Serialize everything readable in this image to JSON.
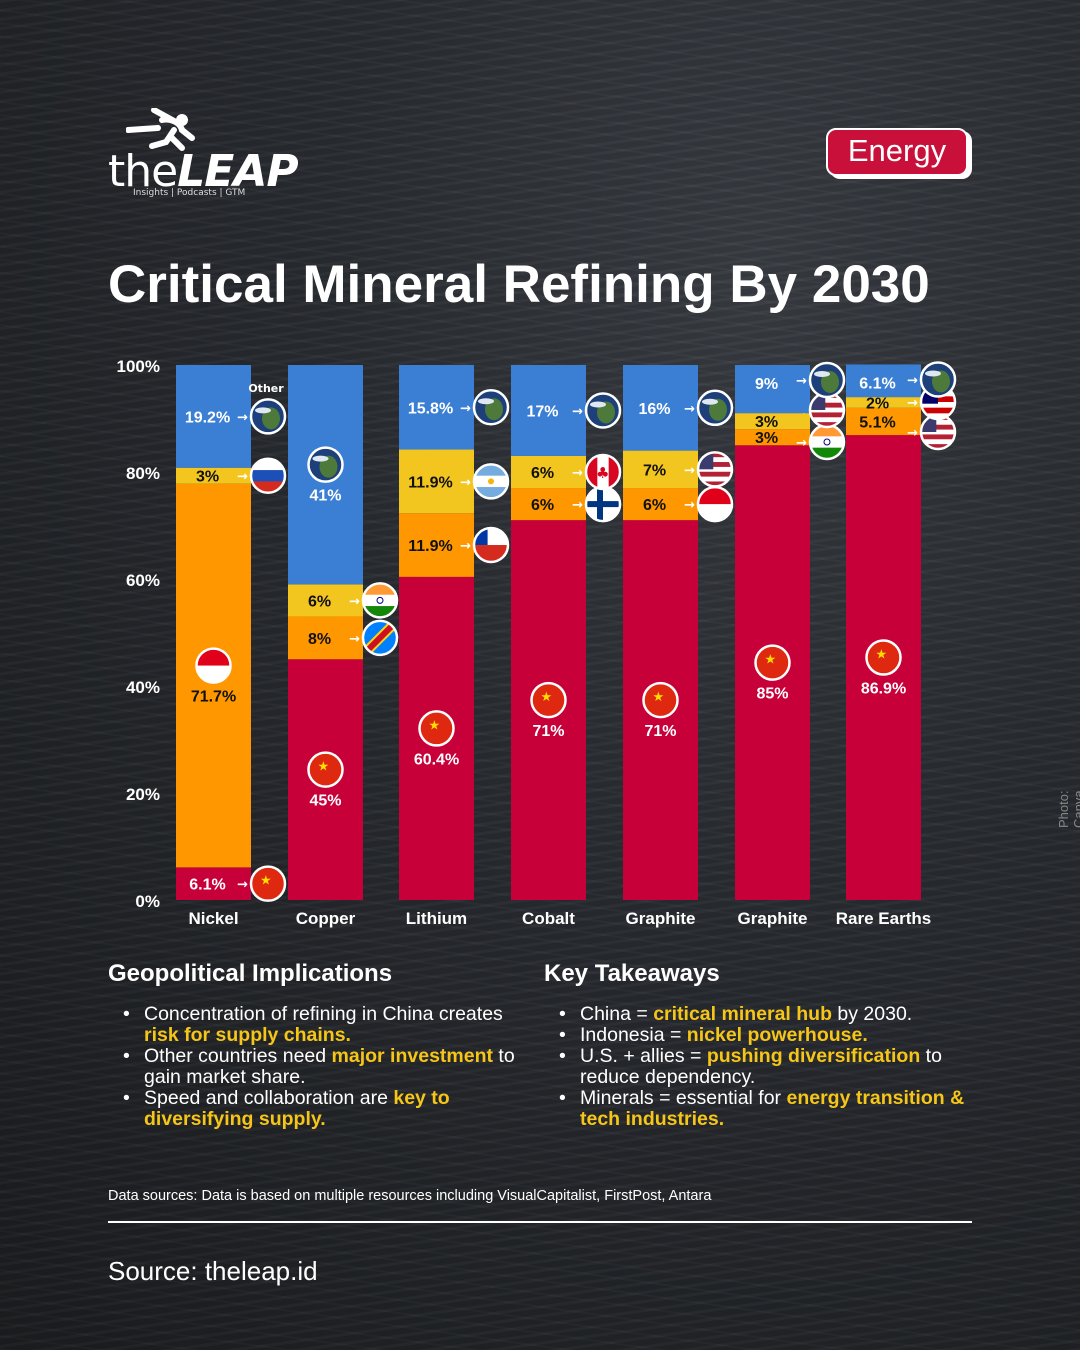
{
  "brand": {
    "name_light": "the",
    "name_bold": "LEAP",
    "tagline": "Insights | Podcasts | GTM"
  },
  "badge": "Energy",
  "title": "Critical Mineral Refining By 2030",
  "photo_credit": "Photo: Canva",
  "colors": {
    "china": "#c8003a",
    "second": "#ff9800",
    "third": "#f2c51f",
    "other": "#3b7fd4",
    "highlight": "#f5c518",
    "badge": "#c8103a"
  },
  "chart_data": {
    "type": "bar",
    "stacked": true,
    "ylim": [
      0,
      100
    ],
    "y_ticks": [
      "0%",
      "20%",
      "40%",
      "60%",
      "80%",
      "100%"
    ],
    "categories": [
      "Nickel",
      "Copper",
      "Lithium",
      "Cobalt",
      "Graphite",
      "Graphite",
      "Rare Earths"
    ],
    "other_label": "Other",
    "bars": [
      {
        "segments": [
          {
            "value": 6.1,
            "label": "6.1%",
            "flag": "china"
          },
          {
            "value": 71.7,
            "label": "71.7%",
            "flag": "indonesia"
          },
          {
            "value": 3,
            "label": "3%",
            "flag": "russia"
          },
          {
            "value": 19.2,
            "label": "19.2%",
            "flag": "globe"
          }
        ]
      },
      {
        "segments": [
          {
            "value": 45,
            "label": "45%",
            "flag": "china"
          },
          {
            "value": 8,
            "label": "8%",
            "flag": "dr-congo"
          },
          {
            "value": 6,
            "label": "6%",
            "flag": "india"
          },
          {
            "value": 41,
            "label": "41%",
            "flag": "globe"
          }
        ]
      },
      {
        "segments": [
          {
            "value": 60.4,
            "label": "60.4%",
            "flag": "china"
          },
          {
            "value": 11.9,
            "label": "11.9%",
            "flag": "chile"
          },
          {
            "value": 11.9,
            "label": "11.9%",
            "flag": "argentina"
          },
          {
            "value": 15.8,
            "label": "15.8%",
            "flag": "globe"
          }
        ]
      },
      {
        "segments": [
          {
            "value": 71,
            "label": "71%",
            "flag": "china"
          },
          {
            "value": 6,
            "label": "6%",
            "flag": "finland"
          },
          {
            "value": 6,
            "label": "6%",
            "flag": "canada"
          },
          {
            "value": 17,
            "label": "17%",
            "flag": "globe"
          }
        ]
      },
      {
        "segments": [
          {
            "value": 71,
            "label": "71%",
            "flag": "china"
          },
          {
            "value": 6,
            "label": "6%",
            "flag": "indonesia"
          },
          {
            "value": 7,
            "label": "7%",
            "flag": "usa"
          },
          {
            "value": 16,
            "label": "16%",
            "flag": "globe"
          }
        ]
      },
      {
        "segments": [
          {
            "value": 85,
            "label": "85%",
            "flag": "china"
          },
          {
            "value": 3,
            "label": "3%",
            "flag": "india"
          },
          {
            "value": 3,
            "label": "3%",
            "flag": "usa"
          },
          {
            "value": 9,
            "label": "9%",
            "flag": "globe"
          }
        ]
      },
      {
        "segments": [
          {
            "value": 86.9,
            "label": "86.9%",
            "flag": "china"
          },
          {
            "value": 5.1,
            "label": "5.1%",
            "flag": "usa"
          },
          {
            "value": 2,
            "label": "2%",
            "flag": "malaysia"
          },
          {
            "value": 6.1,
            "label": "6.1%",
            "flag": "globe"
          }
        ]
      }
    ]
  },
  "implications": {
    "heading": "Geopolitical Implications",
    "items": [
      [
        {
          "t": "Concentration of refining in China creates "
        },
        {
          "t": "risk for supply chains.",
          "hl": true
        }
      ],
      [
        {
          "t": "Other countries need "
        },
        {
          "t": "major investment",
          "hl": true
        },
        {
          "t": " to gain market share."
        }
      ],
      [
        {
          "t": "Speed and collaboration are "
        },
        {
          "t": "key to diversifying supply.",
          "hl": true
        }
      ]
    ]
  },
  "takeaways": {
    "heading": "Key Takeaways",
    "items": [
      [
        {
          "t": "China = "
        },
        {
          "t": "critical mineral hub",
          "hl": true
        },
        {
          "t": " by 2030."
        }
      ],
      [
        {
          "t": "Indonesia = "
        },
        {
          "t": "nickel powerhouse.",
          "hl": true
        }
      ],
      [
        {
          "t": "U.S. + allies = "
        },
        {
          "t": "pushing diversification",
          "hl": true
        },
        {
          "t": " to reduce dependency."
        }
      ],
      [
        {
          "t": "Minerals = essential for "
        },
        {
          "t": "energy transition & tech industries.",
          "hl": true
        }
      ]
    ]
  },
  "data_sources": "Data sources: Data is based on multiple resources including VisualCapitalist, FirstPost, Antara",
  "source": "Source: theleap.id"
}
